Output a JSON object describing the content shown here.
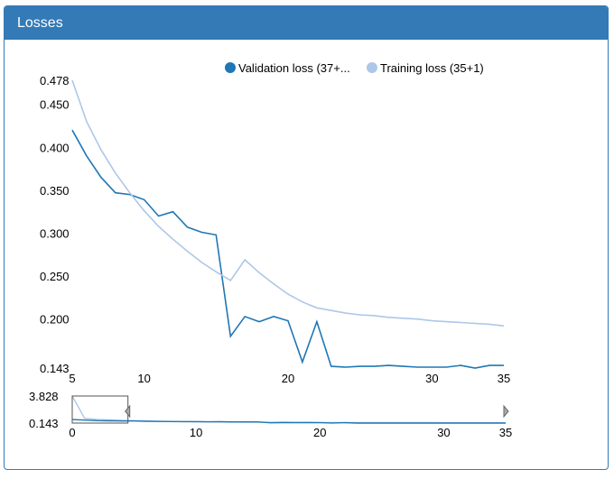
{
  "panel": {
    "title": "Losses"
  },
  "chart_data": {
    "type": "line",
    "legend": [
      {
        "label": "Validation loss (37+...",
        "color": "#1f77b4"
      },
      {
        "label": "Training loss (35+1)",
        "color": "#aec7e8"
      }
    ],
    "main": {
      "xlim": [
        5,
        35
      ],
      "ylim": [
        0.143,
        0.478
      ],
      "x_ticks": [
        5,
        10,
        20,
        30,
        35
      ],
      "y_ticks": [
        0.143,
        0.2,
        0.25,
        0.3,
        0.35,
        0.4,
        0.45,
        0.478
      ],
      "y_tick_labels": [
        "0.143",
        "0.200",
        "0.250",
        "0.300",
        "0.350",
        "0.400",
        "0.450",
        "0.478"
      ]
    },
    "overview": {
      "xlim": [
        0,
        35
      ],
      "ylim": [
        0.143,
        3.828
      ],
      "x_ticks": [
        0,
        10,
        20,
        30,
        35
      ],
      "y_tick_labels": [
        "3.828",
        "0.143"
      ],
      "brush_range": [
        0,
        4.5
      ]
    },
    "series": [
      {
        "name": "Validation loss (37+...",
        "color": "#1f77b4",
        "x": [
          0,
          1,
          2,
          3,
          4,
          5,
          6,
          7,
          8,
          9,
          10,
          11,
          12,
          13,
          14,
          15,
          16,
          17,
          18,
          19,
          20,
          21,
          22,
          23,
          24,
          25,
          26,
          27,
          28,
          29,
          30,
          31,
          32,
          33,
          34,
          35
        ],
        "y": [
          0.62,
          0.55,
          0.48,
          0.45,
          0.43,
          0.42,
          0.39,
          0.365,
          0.347,
          0.345,
          0.339,
          0.32,
          0.325,
          0.307,
          0.301,
          0.298,
          0.18,
          0.203,
          0.197,
          0.203,
          0.198,
          0.15,
          0.197,
          0.145,
          0.144,
          0.145,
          0.145,
          0.146,
          0.145,
          0.144,
          0.144,
          0.144,
          0.146,
          0.143,
          0.146,
          0.146
        ]
      },
      {
        "name": "Training loss (35+1)",
        "color": "#aec7e8",
        "x": [
          0,
          1,
          2,
          3,
          4,
          5,
          6,
          7,
          8,
          9,
          10,
          11,
          12,
          13,
          14,
          15,
          16,
          17,
          18,
          19,
          20,
          21,
          22,
          23,
          24,
          25,
          26,
          27,
          28,
          29,
          30,
          31,
          32,
          33,
          34,
          35
        ],
        "y": [
          3.828,
          0.8,
          0.65,
          0.58,
          0.52,
          0.478,
          0.43,
          0.397,
          0.37,
          0.347,
          0.326,
          0.308,
          0.293,
          0.279,
          0.266,
          0.255,
          0.245,
          0.269,
          0.254,
          0.241,
          0.229,
          0.22,
          0.213,
          0.21,
          0.207,
          0.205,
          0.204,
          0.202,
          0.201,
          0.2,
          0.198,
          0.197,
          0.196,
          0.195,
          0.194,
          0.192
        ]
      }
    ]
  }
}
